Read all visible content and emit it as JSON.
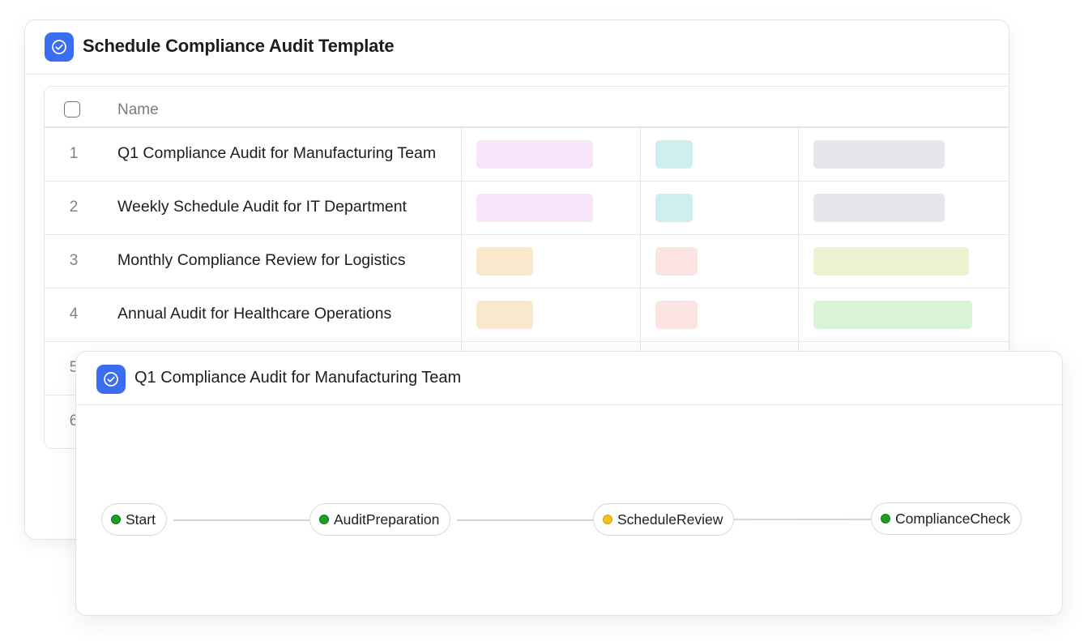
{
  "colors": {
    "accent": "#3a6df0",
    "pill_pink": "#f7e4f8",
    "pill_teal": "#cdf0ee",
    "pill_gray": "#e6e7ea",
    "pill_orange": "#f9e8cb",
    "pill_red": "#fce4e2",
    "pill_olive": "#ebf2cf",
    "pill_green": "#d9f3d6",
    "status_done": "#1f9d24",
    "status_pending": "#f3c418"
  },
  "icons": {
    "app": "check-circle-icon"
  },
  "template_window": {
    "title": "Schedule Compliance Audit Template",
    "table": {
      "column_name_header": "Name",
      "rows": [
        {
          "num": "1",
          "name": "Q1 Compliance Audit for Manufacturing Team",
          "tags": [
            "pill_pink",
            "pill_teal",
            "pill_gray"
          ]
        },
        {
          "num": "2",
          "name": "Weekly Schedule Audit for IT Department",
          "tags": [
            "pill_pink",
            "pill_teal",
            "pill_gray"
          ]
        },
        {
          "num": "3",
          "name": "Monthly Compliance Review for Logistics",
          "tags": [
            "pill_orange",
            "pill_red",
            "pill_olive"
          ]
        },
        {
          "num": "4",
          "name": "Annual Audit for Healthcare Operations",
          "tags": [
            "pill_orange",
            "pill_red",
            "pill_green"
          ]
        },
        {
          "num": "5",
          "name": ""
        },
        {
          "num": "6",
          "name": ""
        }
      ]
    }
  },
  "detail_window": {
    "title": "Q1 Compliance Audit for Manufacturing Team",
    "workflow": [
      {
        "label": "Start",
        "status": "done"
      },
      {
        "label": "AuditPreparation",
        "status": "done"
      },
      {
        "label": "ScheduleReview",
        "status": "pending"
      },
      {
        "label": "ComplianceCheck",
        "status": "done"
      }
    ]
  }
}
